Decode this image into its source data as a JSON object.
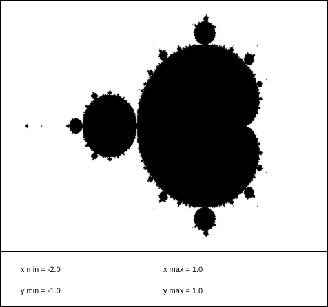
{
  "view": {
    "x_min": -2.0,
    "x_max": 1.0,
    "y_min": -1.0,
    "y_max": 1.0,
    "max_iterations": 200,
    "set_color": "#000000",
    "background_color": "#ffffff"
  },
  "panel": {
    "x_min_label": "x min =",
    "x_min_value": "-2.0",
    "x_max_label": "x max =",
    "x_max_value": "1.0",
    "y_min_label": "y min =",
    "y_min_value": "-1.0",
    "y_max_label": "y max =",
    "y_max_value": "1.0"
  }
}
